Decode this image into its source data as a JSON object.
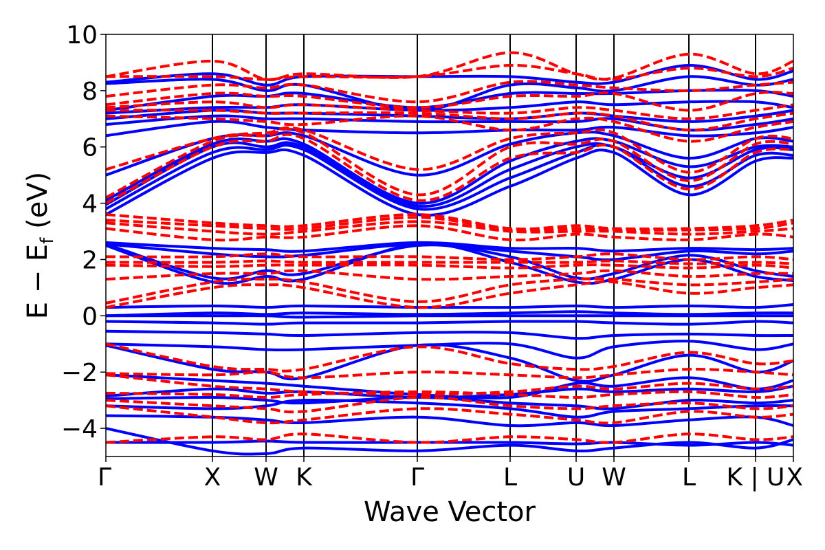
{
  "chart_data": {
    "type": "line",
    "title": "",
    "xlabel": "Wave Vector",
    "ylabel_main": "E − E",
    "ylabel_sub": "f",
    "ylabel_unit": " (eV)",
    "ylim": [
      -5,
      10
    ],
    "yticks": [
      {
        "value": -4,
        "label": "−4"
      },
      {
        "value": -2,
        "label": "−2"
      },
      {
        "value": 0,
        "label": "0"
      },
      {
        "value": 2,
        "label": "2"
      },
      {
        "value": 4,
        "label": "4"
      },
      {
        "value": 6,
        "label": "6"
      },
      {
        "value": 8,
        "label": "8"
      },
      {
        "value": 10,
        "label": "10"
      }
    ],
    "kpath": [
      {
        "label": "Γ",
        "pos": 0
      },
      {
        "label": "X",
        "pos": 0.155
      },
      {
        "label": "W",
        "pos": 0.233
      },
      {
        "label": "K",
        "pos": 0.288
      },
      {
        "label": "Γ",
        "pos": 0.453
      },
      {
        "label": "L",
        "pos": 0.588
      },
      {
        "label": "U",
        "pos": 0.684
      },
      {
        "label": "W",
        "pos": 0.739
      },
      {
        "label": "L",
        "pos": 0.848
      },
      {
        "label": "K | U",
        "pos": 0.945
      },
      {
        "label": "X",
        "pos": 1.0
      }
    ],
    "kpath_vlines": [
      0.155,
      0.233,
      0.288,
      0.453,
      0.588,
      0.684,
      0.739,
      0.848,
      0.945
    ],
    "series": [
      {
        "style": "solid",
        "color": "#0000ff",
        "bands": [
          [
            -4.5,
            -4.5,
            -4.45,
            -4.5,
            -4.5,
            -4.5,
            -4.55,
            -4.5,
            -4.6,
            -4.5,
            -4.6
          ],
          [
            -4.0,
            -4.8,
            -4.9,
            -4.7,
            -4.8,
            -4.6,
            -4.8,
            -4.7,
            -4.5,
            -4.7,
            -4.4
          ],
          [
            -3.55,
            -3.6,
            -3.7,
            -3.8,
            -3.6,
            -3.9,
            -3.8,
            -3.9,
            -3.7,
            -3.6,
            -3.9
          ],
          [
            -3.2,
            -3.3,
            -3.2,
            -3.0,
            -3.1,
            -3.3,
            -3.6,
            -3.4,
            -3.3,
            -3.2,
            -3.2
          ],
          [
            -2.95,
            -2.9,
            -3.0,
            -3.1,
            -2.9,
            -3.1,
            -3.2,
            -3.3,
            -3.0,
            -3.1,
            -3.0
          ],
          [
            -2.85,
            -2.6,
            -2.75,
            -2.7,
            -2.9,
            -2.8,
            -2.6,
            -2.7,
            -2.6,
            -2.7,
            -2.5
          ],
          [
            -2.1,
            -2.3,
            -2.4,
            -2.5,
            -2.8,
            -2.9,
            -2.4,
            -2.5,
            -2.2,
            -2.6,
            -2.3
          ],
          [
            -1.05,
            -1.9,
            -2.0,
            -2.2,
            -1.05,
            -1.5,
            -2.3,
            -2.1,
            -1.4,
            -2.0,
            -1.6
          ],
          [
            -1.0,
            -1.1,
            -1.2,
            -1.2,
            -1.05,
            -1.0,
            -1.5,
            -1.1,
            -0.9,
            -1.2,
            -1.0
          ],
          [
            -0.55,
            -0.6,
            -0.65,
            -0.7,
            -0.6,
            -0.6,
            -0.8,
            -0.7,
            -0.65,
            -0.7,
            -0.7
          ],
          [
            -0.2,
            -0.25,
            -0.3,
            -0.25,
            -0.25,
            -0.2,
            -0.2,
            -0.25,
            -0.3,
            -0.2,
            -0.25
          ],
          [
            0.0,
            0.0,
            0.0,
            -0.05,
            0.0,
            0.0,
            0.0,
            0.0,
            0.0,
            0.0,
            0.0
          ],
          [
            0.0,
            0.1,
            0.05,
            0.1,
            0.05,
            0.1,
            0.15,
            0.1,
            0.05,
            0.1,
            0.1
          ],
          [
            0.3,
            0.35,
            0.3,
            0.35,
            0.3,
            0.3,
            0.35,
            0.3,
            0.35,
            0.3,
            0.4
          ],
          [
            2.5,
            1.2,
            1.4,
            1.3,
            2.55,
            1.9,
            1.2,
            1.3,
            2.0,
            1.4,
            1.25
          ],
          [
            2.55,
            1.35,
            1.6,
            1.5,
            2.5,
            2.1,
            1.35,
            1.5,
            2.15,
            1.6,
            1.4
          ],
          [
            2.55,
            2.2,
            2.1,
            2.15,
            2.55,
            2.3,
            2.1,
            2.0,
            2.3,
            2.2,
            2.3
          ],
          [
            2.6,
            2.4,
            2.35,
            2.3,
            2.6,
            2.4,
            2.4,
            2.3,
            2.4,
            2.35,
            2.4
          ],
          [
            3.6,
            5.6,
            5.8,
            5.7,
            3.6,
            4.6,
            5.6,
            5.8,
            4.3,
            5.5,
            5.6
          ],
          [
            3.8,
            5.8,
            5.9,
            5.9,
            3.8,
            4.9,
            5.8,
            6.0,
            4.6,
            5.7,
            5.7
          ],
          [
            3.95,
            6.0,
            6.0,
            6.0,
            3.9,
            5.2,
            6.0,
            6.0,
            4.9,
            5.9,
            5.9
          ],
          [
            4.1,
            6.1,
            6.2,
            6.1,
            4.0,
            5.5,
            6.2,
            6.2,
            5.3,
            6.0,
            6.0
          ],
          [
            5.0,
            6.3,
            6.4,
            6.4,
            5.0,
            6.1,
            6.5,
            6.4,
            5.6,
            6.3,
            6.2
          ],
          [
            6.4,
            6.9,
            6.7,
            6.6,
            6.5,
            6.6,
            6.6,
            6.7,
            6.4,
            6.5,
            6.7
          ],
          [
            6.8,
            7.1,
            7.0,
            7.0,
            6.9,
            6.9,
            6.9,
            7.0,
            6.6,
            6.8,
            7.0
          ],
          [
            7.0,
            7.3,
            7.2,
            7.2,
            7.1,
            7.0,
            7.2,
            7.1,
            6.9,
            7.1,
            7.3
          ],
          [
            7.2,
            7.4,
            7.4,
            7.5,
            7.3,
            7.4,
            7.6,
            7.5,
            7.6,
            7.6,
            7.4
          ],
          [
            7.3,
            7.8,
            7.8,
            7.9,
            7.4,
            7.9,
            7.9,
            7.9,
            8.0,
            8.0,
            7.8
          ],
          [
            8.25,
            8.4,
            8.0,
            8.2,
            7.3,
            8.2,
            8.1,
            8.0,
            8.5,
            8.2,
            8.4
          ],
          [
            8.3,
            8.6,
            8.2,
            8.5,
            8.5,
            8.5,
            8.3,
            8.3,
            8.9,
            8.4,
            8.7
          ]
        ]
      },
      {
        "style": "dashed",
        "color": "#ff0000",
        "bands": [
          [
            -4.5,
            -4.3,
            -4.4,
            -4.2,
            -4.5,
            -4.3,
            -4.4,
            -4.5,
            -4.2,
            -4.4,
            -4.3
          ],
          [
            -3.2,
            -3.6,
            -3.8,
            -3.7,
            -3.3,
            -3.5,
            -3.7,
            -3.8,
            -3.4,
            -3.6,
            -3.5
          ],
          [
            -3.0,
            -3.2,
            -3.3,
            -3.4,
            -2.9,
            -3.2,
            -3.3,
            -3.2,
            -3.1,
            -3.3,
            -3.2
          ],
          [
            -2.75,
            -2.8,
            -2.9,
            -2.8,
            -2.7,
            -2.8,
            -2.9,
            -2.8,
            -2.7,
            -2.9,
            -2.8
          ],
          [
            -2.1,
            -2.5,
            -2.6,
            -2.7,
            -2.8,
            -2.7,
            -2.5,
            -2.6,
            -2.4,
            -2.6,
            -2.5
          ],
          [
            -2.05,
            -2.1,
            -2.0,
            -2.2,
            -2.0,
            -2.1,
            -2.2,
            -2.1,
            -1.9,
            -2.0,
            -2.1
          ],
          [
            -1.0,
            -1.8,
            -1.9,
            -1.9,
            -1.1,
            -1.7,
            -1.9,
            -1.8,
            -1.3,
            -1.7,
            -1.6
          ],
          [
            0.3,
            1.0,
            1.1,
            1.0,
            0.3,
            0.8,
            1.1,
            1.2,
            0.8,
            1.0,
            1.1
          ],
          [
            0.45,
            1.2,
            1.3,
            1.2,
            0.5,
            1.1,
            1.3,
            1.3,
            1.1,
            1.2,
            1.3
          ],
          [
            1.3,
            1.5,
            1.5,
            1.6,
            1.3,
            1.4,
            1.5,
            1.6,
            1.4,
            1.5,
            1.5
          ],
          [
            1.8,
            1.75,
            1.8,
            1.8,
            1.8,
            1.7,
            1.8,
            1.8,
            1.7,
            1.8,
            1.7
          ],
          [
            1.9,
            1.9,
            1.95,
            1.9,
            1.9,
            1.9,
            1.9,
            1.95,
            1.85,
            1.9,
            1.85
          ],
          [
            2.1,
            2.1,
            2.2,
            2.1,
            2.1,
            2.0,
            2.1,
            2.2,
            2.0,
            2.1,
            2.0
          ],
          [
            3.1,
            2.7,
            2.8,
            2.8,
            3.2,
            2.7,
            2.9,
            2.8,
            2.7,
            2.9,
            2.8
          ],
          [
            3.3,
            3.0,
            2.9,
            3.0,
            3.35,
            3.0,
            3.0,
            3.0,
            2.9,
            3.0,
            3.1
          ],
          [
            3.4,
            3.2,
            3.1,
            3.1,
            3.5,
            3.05,
            3.1,
            3.05,
            3.05,
            3.1,
            3.3
          ],
          [
            3.6,
            3.3,
            3.2,
            3.2,
            3.6,
            3.1,
            3.2,
            3.1,
            3.1,
            3.2,
            3.4
          ],
          [
            4.0,
            6.0,
            6.2,
            6.3,
            4.1,
            5.6,
            5.8,
            6.0,
            4.5,
            5.8,
            5.9
          ],
          [
            4.2,
            6.2,
            6.4,
            6.5,
            4.3,
            6.0,
            6.1,
            6.2,
            4.8,
            6.1,
            6.1
          ],
          [
            5.2,
            6.3,
            6.5,
            6.6,
            5.2,
            6.3,
            6.5,
            6.5,
            5.1,
            6.3,
            6.3
          ],
          [
            7.1,
            7.0,
            6.9,
            6.8,
            7.1,
            6.6,
            7.0,
            6.9,
            6.2,
            6.7,
            6.9
          ],
          [
            7.3,
            7.3,
            7.2,
            7.2,
            7.2,
            7.0,
            7.2,
            7.1,
            6.6,
            7.0,
            7.2
          ],
          [
            7.4,
            7.6,
            7.4,
            7.5,
            7.3,
            7.2,
            7.4,
            7.3,
            7.0,
            7.3,
            7.5
          ],
          [
            7.5,
            7.9,
            7.8,
            7.8,
            7.4,
            7.8,
            7.8,
            7.9,
            7.3,
            7.9,
            7.9
          ],
          [
            7.8,
            8.2,
            8.1,
            8.2,
            7.6,
            8.3,
            8.2,
            8.1,
            8.0,
            8.2,
            8.3
          ],
          [
            8.5,
            8.5,
            8.4,
            8.5,
            8.5,
            8.9,
            8.6,
            8.4,
            8.8,
            8.5,
            8.8
          ],
          [
            8.5,
            9.05,
            8.4,
            8.6,
            8.5,
            9.35,
            8.6,
            8.45,
            9.3,
            8.6,
            9.05
          ]
        ]
      }
    ]
  }
}
